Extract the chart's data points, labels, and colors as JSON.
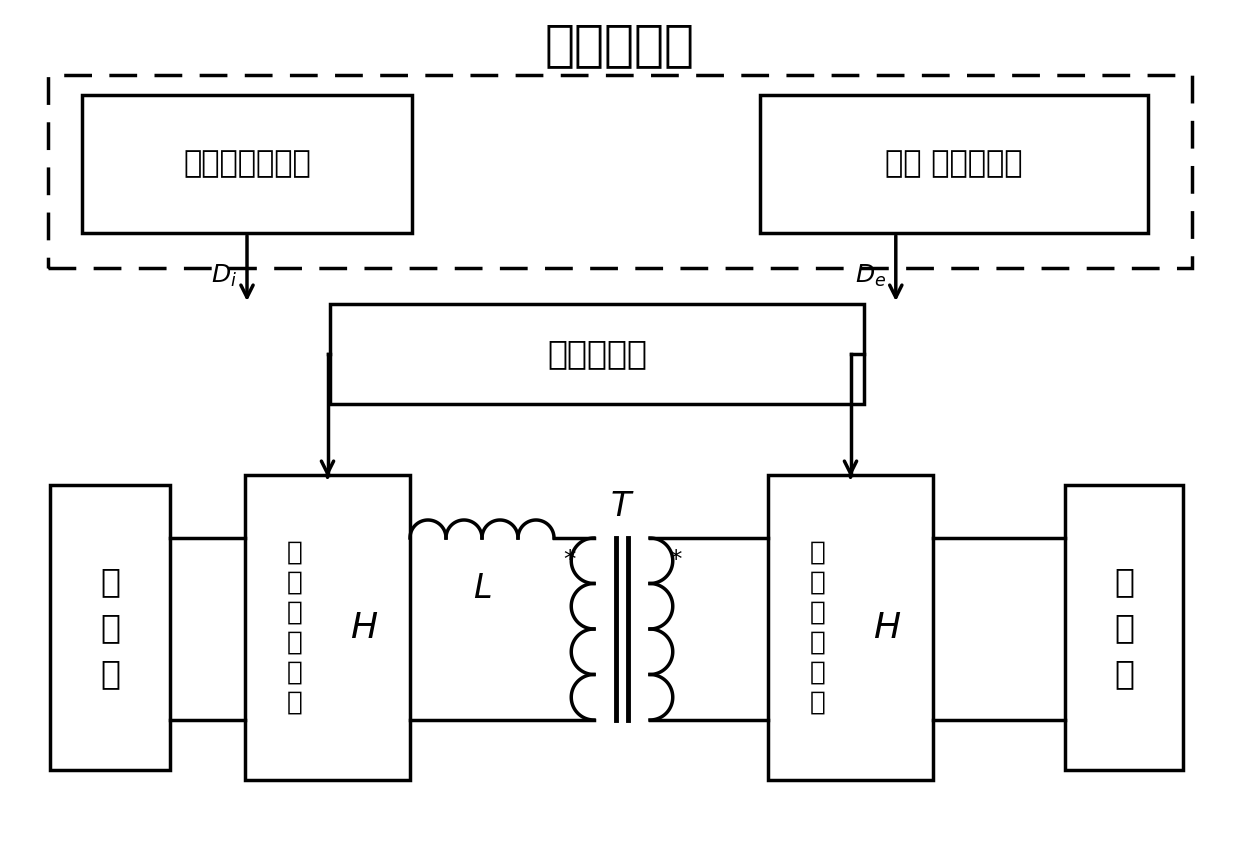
{
  "title": "解耦控制器",
  "title_fontsize": 36,
  "box1_label": "输入均压控制器",
  "box2_label": "输出 电压控制器",
  "box3_label": "移相控制器",
  "bg_color": "#ffffff",
  "line_color": "#000000",
  "lw": 2.5
}
